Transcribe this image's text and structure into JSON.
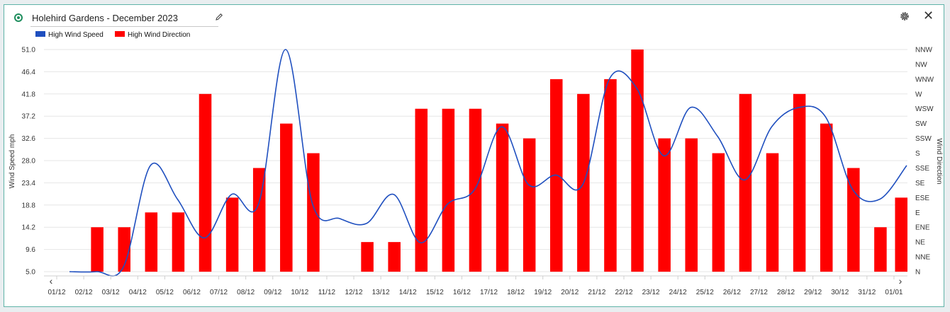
{
  "header": {
    "title": "Holehird Gardens - December 2023",
    "edit_icon": "pencil-icon",
    "settings_icon": "gear-icon",
    "close_icon": "close-icon"
  },
  "legend": [
    {
      "label": "High Wind Speed",
      "color": "#1f4fbf"
    },
    {
      "label": "High Wind Direction",
      "color": "#ff0000"
    }
  ],
  "chart_data": {
    "type": "bar",
    "xlabel": "",
    "ylabel_left": "Wind Speed mph",
    "ylabel_right": "Wind Direction",
    "categories": [
      "01/12",
      "02/12",
      "03/12",
      "04/12",
      "05/12",
      "06/12",
      "07/12",
      "08/12",
      "09/12",
      "10/12",
      "11/12",
      "12/12",
      "13/12",
      "14/12",
      "15/12",
      "16/12",
      "17/12",
      "18/12",
      "19/12",
      "20/12",
      "21/12",
      "22/12",
      "23/12",
      "24/12",
      "25/12",
      "26/12",
      "27/12",
      "28/12",
      "29/12",
      "30/12",
      "31/12",
      "01/01"
    ],
    "y_left_ticks": [
      "51.0",
      "46.4",
      "41.8",
      "37.2",
      "32.6",
      "28.0",
      "23.4",
      "18.8",
      "14.2",
      "9.6",
      "5.0"
    ],
    "y_left_range": [
      5.0,
      51.0
    ],
    "y_right_ticks": [
      "NNW",
      "NW",
      "WNW",
      "W",
      "WSW",
      "SW",
      "SSW",
      "S",
      "SSE",
      "SE",
      "ESE",
      "E",
      "ENE",
      "NE",
      "NNE",
      "N"
    ],
    "grid": true,
    "legend_position": "top-left",
    "series": [
      {
        "name": "High Wind Speed",
        "type": "line",
        "axis": "left",
        "color": "#1f4fbf",
        "x": [
          0.5,
          1.5,
          2.5,
          3.5,
          4.5,
          5.5,
          6.5,
          7.5,
          8.5,
          9.5,
          10.5,
          11.5,
          12.5,
          13.5,
          14.5,
          15.5,
          16.5,
          17.5,
          18.5,
          19.5,
          20.5,
          21.5,
          22.5,
          23.5,
          24.5,
          25.5,
          26.5,
          27.5,
          28.5,
          29.5,
          30.5,
          31.5
        ],
        "values": [
          5.0,
          5.0,
          6.0,
          27.0,
          20.0,
          12.0,
          21.0,
          19.0,
          51.0,
          19.0,
          16.0,
          15.0,
          21.0,
          11.0,
          19.0,
          22.0,
          35.0,
          23.0,
          25.0,
          23.0,
          45.0,
          43.0,
          29.0,
          39.0,
          33.0,
          24.0,
          35.0,
          39.0,
          37.0,
          22.0,
          20.0,
          27.0
        ]
      },
      {
        "name": "High Wind Direction",
        "type": "bar",
        "axis": "right",
        "color": "#ff0000",
        "values": [
          null,
          "ENE",
          "ENE",
          "E",
          "E",
          "W",
          "ESE",
          "SSE",
          "SW",
          "S",
          null,
          "NE",
          "NE",
          "WSW",
          "WSW",
          "WSW",
          "SW",
          "SSW",
          "WNW",
          "W",
          "WNW",
          "NNW",
          "SSW",
          "SSW",
          "S",
          "W",
          "S",
          "W",
          "SW",
          "SSE",
          "ENE",
          "ESE"
        ]
      }
    ]
  }
}
